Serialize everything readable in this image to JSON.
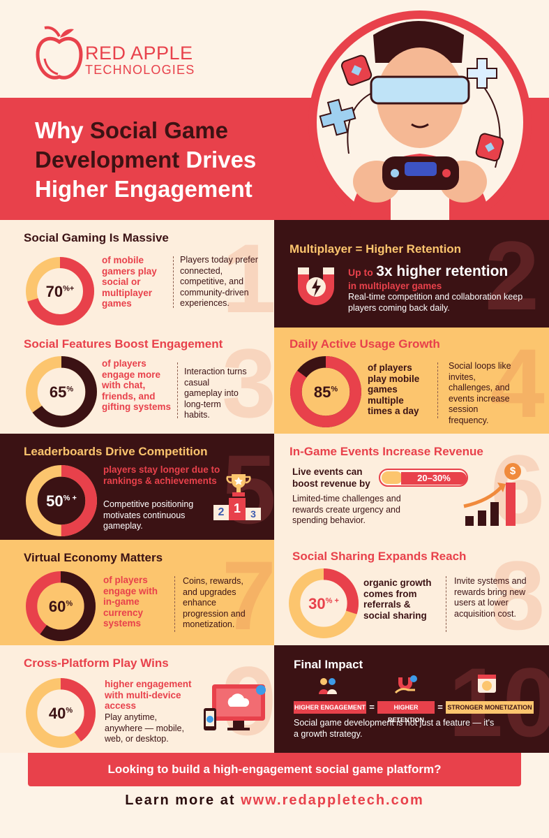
{
  "brand": {
    "line1": "RED APPLE",
    "line2": "TECHNOLOGIES",
    "color": "#e8414b"
  },
  "title": {
    "p1": "Why ",
    "p2": "Social Game",
    "p3": "Development",
    "p4": " Drives",
    "p5": "Higher Engagement"
  },
  "panels": [
    {
      "heading": "Social Gaming Is Massive",
      "number": "1",
      "ring_value": "70",
      "ring_suffix": "%+",
      "ring_percent": 70,
      "stat": "of mobile gamers play social or multiplayer games",
      "desc": "Players today prefer connected, competitive, and community-driven experiences."
    },
    {
      "heading": "Multiplayer = Higher Retention",
      "number": "2",
      "stat_small": "Up to",
      "stat_big": "3x higher retention",
      "stat_sub": "in multiplayer games",
      "desc": "Real-time competition and collaboration keep players coming back daily."
    },
    {
      "heading": "Social Features Boost Engagement",
      "number": "3",
      "ring_value": "65",
      "ring_suffix": "%",
      "ring_percent": 65,
      "stat": "of players engage more with chat, friends, and gifting systems",
      "desc": "Interaction turns casual gameplay into long-term habits."
    },
    {
      "heading": "Daily Active Usage Growth",
      "number": "4",
      "ring_value": "85",
      "ring_suffix": "%",
      "ring_percent": 85,
      "stat": "of players play mobile games multiple times a day",
      "desc": "Social loops like invites, challenges, and events increase session frequency."
    },
    {
      "heading": "Leaderboards Drive Competition",
      "number": "5",
      "ring_value": "50",
      "ring_suffix": "% +",
      "ring_percent": 50,
      "stat": "players stay longer due to rankings & achievements",
      "desc": "Competitive positioning motivates continuous gameplay.",
      "podium": [
        "2",
        "1",
        "3"
      ]
    },
    {
      "heading": "In-Game Events Increase Revenue",
      "number": "6",
      "stat": "Live events can boost revenue by",
      "pill": "20–30%",
      "desc": "Limited-time challenges and rewards create urgency and spending behavior.",
      "coin": "$"
    },
    {
      "heading": "Virtual Economy Matters",
      "number": "7",
      "ring_value": "60",
      "ring_suffix": "%",
      "ring_percent": 60,
      "stat": "of players engage with in-game currency systems",
      "desc": "Coins, rewards, and upgrades enhance progression and monetization."
    },
    {
      "heading": "Social Sharing Expands Reach",
      "number": "8",
      "ring_value": "30",
      "ring_suffix": "% +",
      "ring_percent": 30,
      "stat": "organic growth comes from referrals & social sharing",
      "desc": "Invite systems and rewards bring new users at lower acquisition cost."
    },
    {
      "heading": "Cross-Platform Play Wins",
      "number": "9",
      "ring_value": "40",
      "ring_suffix": "%",
      "ring_percent": 40,
      "stat": "higher engagement with multi-device access",
      "desc": "Play anytime, anywhere — mobile, web, or desktop."
    },
    {
      "heading": "Final Impact",
      "number": "10",
      "eq": [
        "HIGHER ENGAGEMENT",
        "=",
        "HIGHER RETENTION",
        "=",
        "STRONGER MONETIZATION"
      ],
      "desc": "Social game development is not just a feature — it's a growth strategy."
    }
  ],
  "cta": {
    "text": "Looking to build a high-engagement social game platform?"
  },
  "learn": {
    "prefix": "Learn more at ",
    "url": "www.redappletech.com"
  },
  "colors": {
    "red": "#e8414b",
    "dark": "#3b1214",
    "yellow": "#fcc56e",
    "cream": "#fdeedd"
  },
  "icons": [
    "apple-logo-icon",
    "magnet-icon",
    "trophy-icon",
    "coin-icon",
    "growth-chart-icon",
    "devices-icon",
    "people-icon",
    "hand-magnet-icon",
    "money-card-icon",
    "gamer-illustration"
  ]
}
